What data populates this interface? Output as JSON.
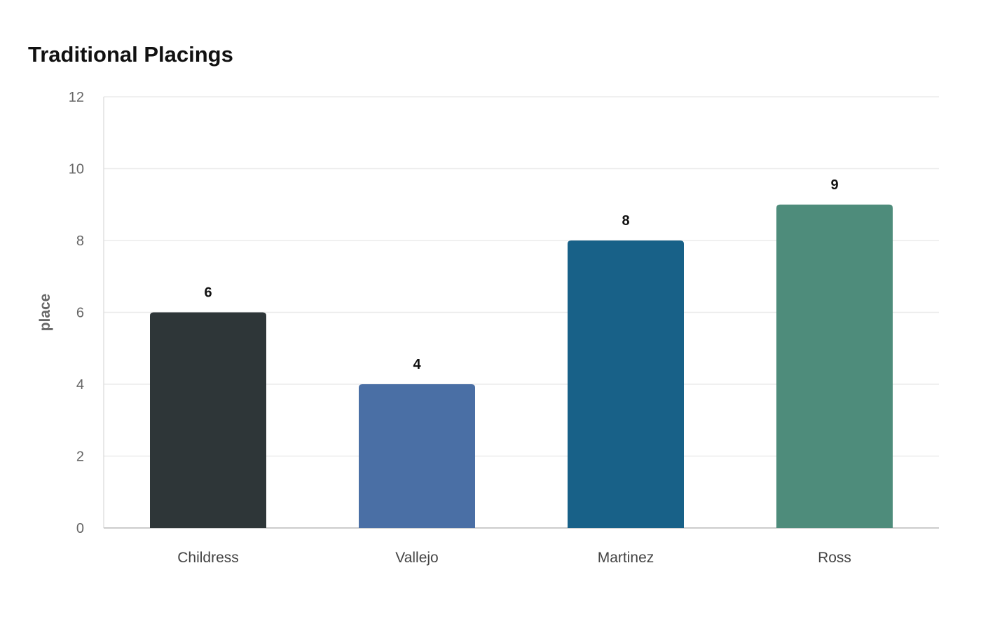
{
  "chart_data": {
    "type": "bar",
    "title": "Traditional Placings",
    "xlabel": "",
    "ylabel": "place",
    "categories": [
      "Childress",
      "Vallejo",
      "Martinez",
      "Ross"
    ],
    "values": [
      6,
      4,
      8,
      9
    ],
    "colors": [
      "#2e3638",
      "#4a6fa5",
      "#186188",
      "#4e8c7b"
    ],
    "ylim": [
      0,
      12
    ],
    "yticks": [
      0,
      2,
      4,
      6,
      8,
      10,
      12
    ],
    "grid": true,
    "legend": "none"
  }
}
